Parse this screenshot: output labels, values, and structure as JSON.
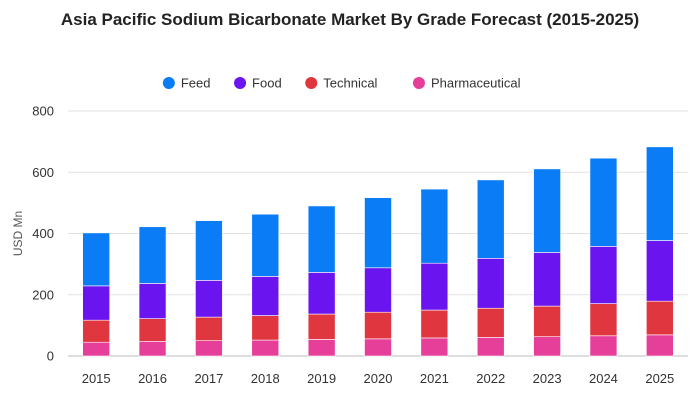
{
  "chart_data": {
    "type": "bar",
    "stacked": true,
    "title": "Asia Pacific Sodium Bicarbonate Market By Grade Forecast (2015-2025)",
    "xlabel": "",
    "ylabel": "USD Mn",
    "ylim": [
      0,
      800
    ],
    "yticks": [
      0,
      200,
      400,
      600,
      800
    ],
    "grid": true,
    "legend_position": "top",
    "categories": [
      "2015",
      "2016",
      "2017",
      "2018",
      "2019",
      "2020",
      "2021",
      "2022",
      "2023",
      "2024",
      "2025"
    ],
    "series": [
      {
        "name": "Pharmaceutical",
        "color": "#e63f9a",
        "values": [
          45,
          48,
          50,
          52,
          54,
          56,
          59,
          61,
          63,
          66,
          69
        ]
      },
      {
        "name": "Technical",
        "color": "#e0363f",
        "values": [
          72,
          74,
          77,
          80,
          83,
          87,
          91,
          95,
          100,
          105,
          110
        ]
      },
      {
        "name": "Food",
        "color": "#6a14f0",
        "values": [
          112,
          115,
          120,
          128,
          136,
          145,
          153,
          163,
          175,
          187,
          198
        ]
      },
      {
        "name": "Feed",
        "color": "#0a7cf5",
        "values": [
          173,
          185,
          195,
          203,
          217,
          229,
          242,
          256,
          273,
          288,
          306
        ]
      }
    ],
    "legend_order": [
      "Feed",
      "Food",
      "Technical",
      "Pharmaceutical"
    ]
  }
}
